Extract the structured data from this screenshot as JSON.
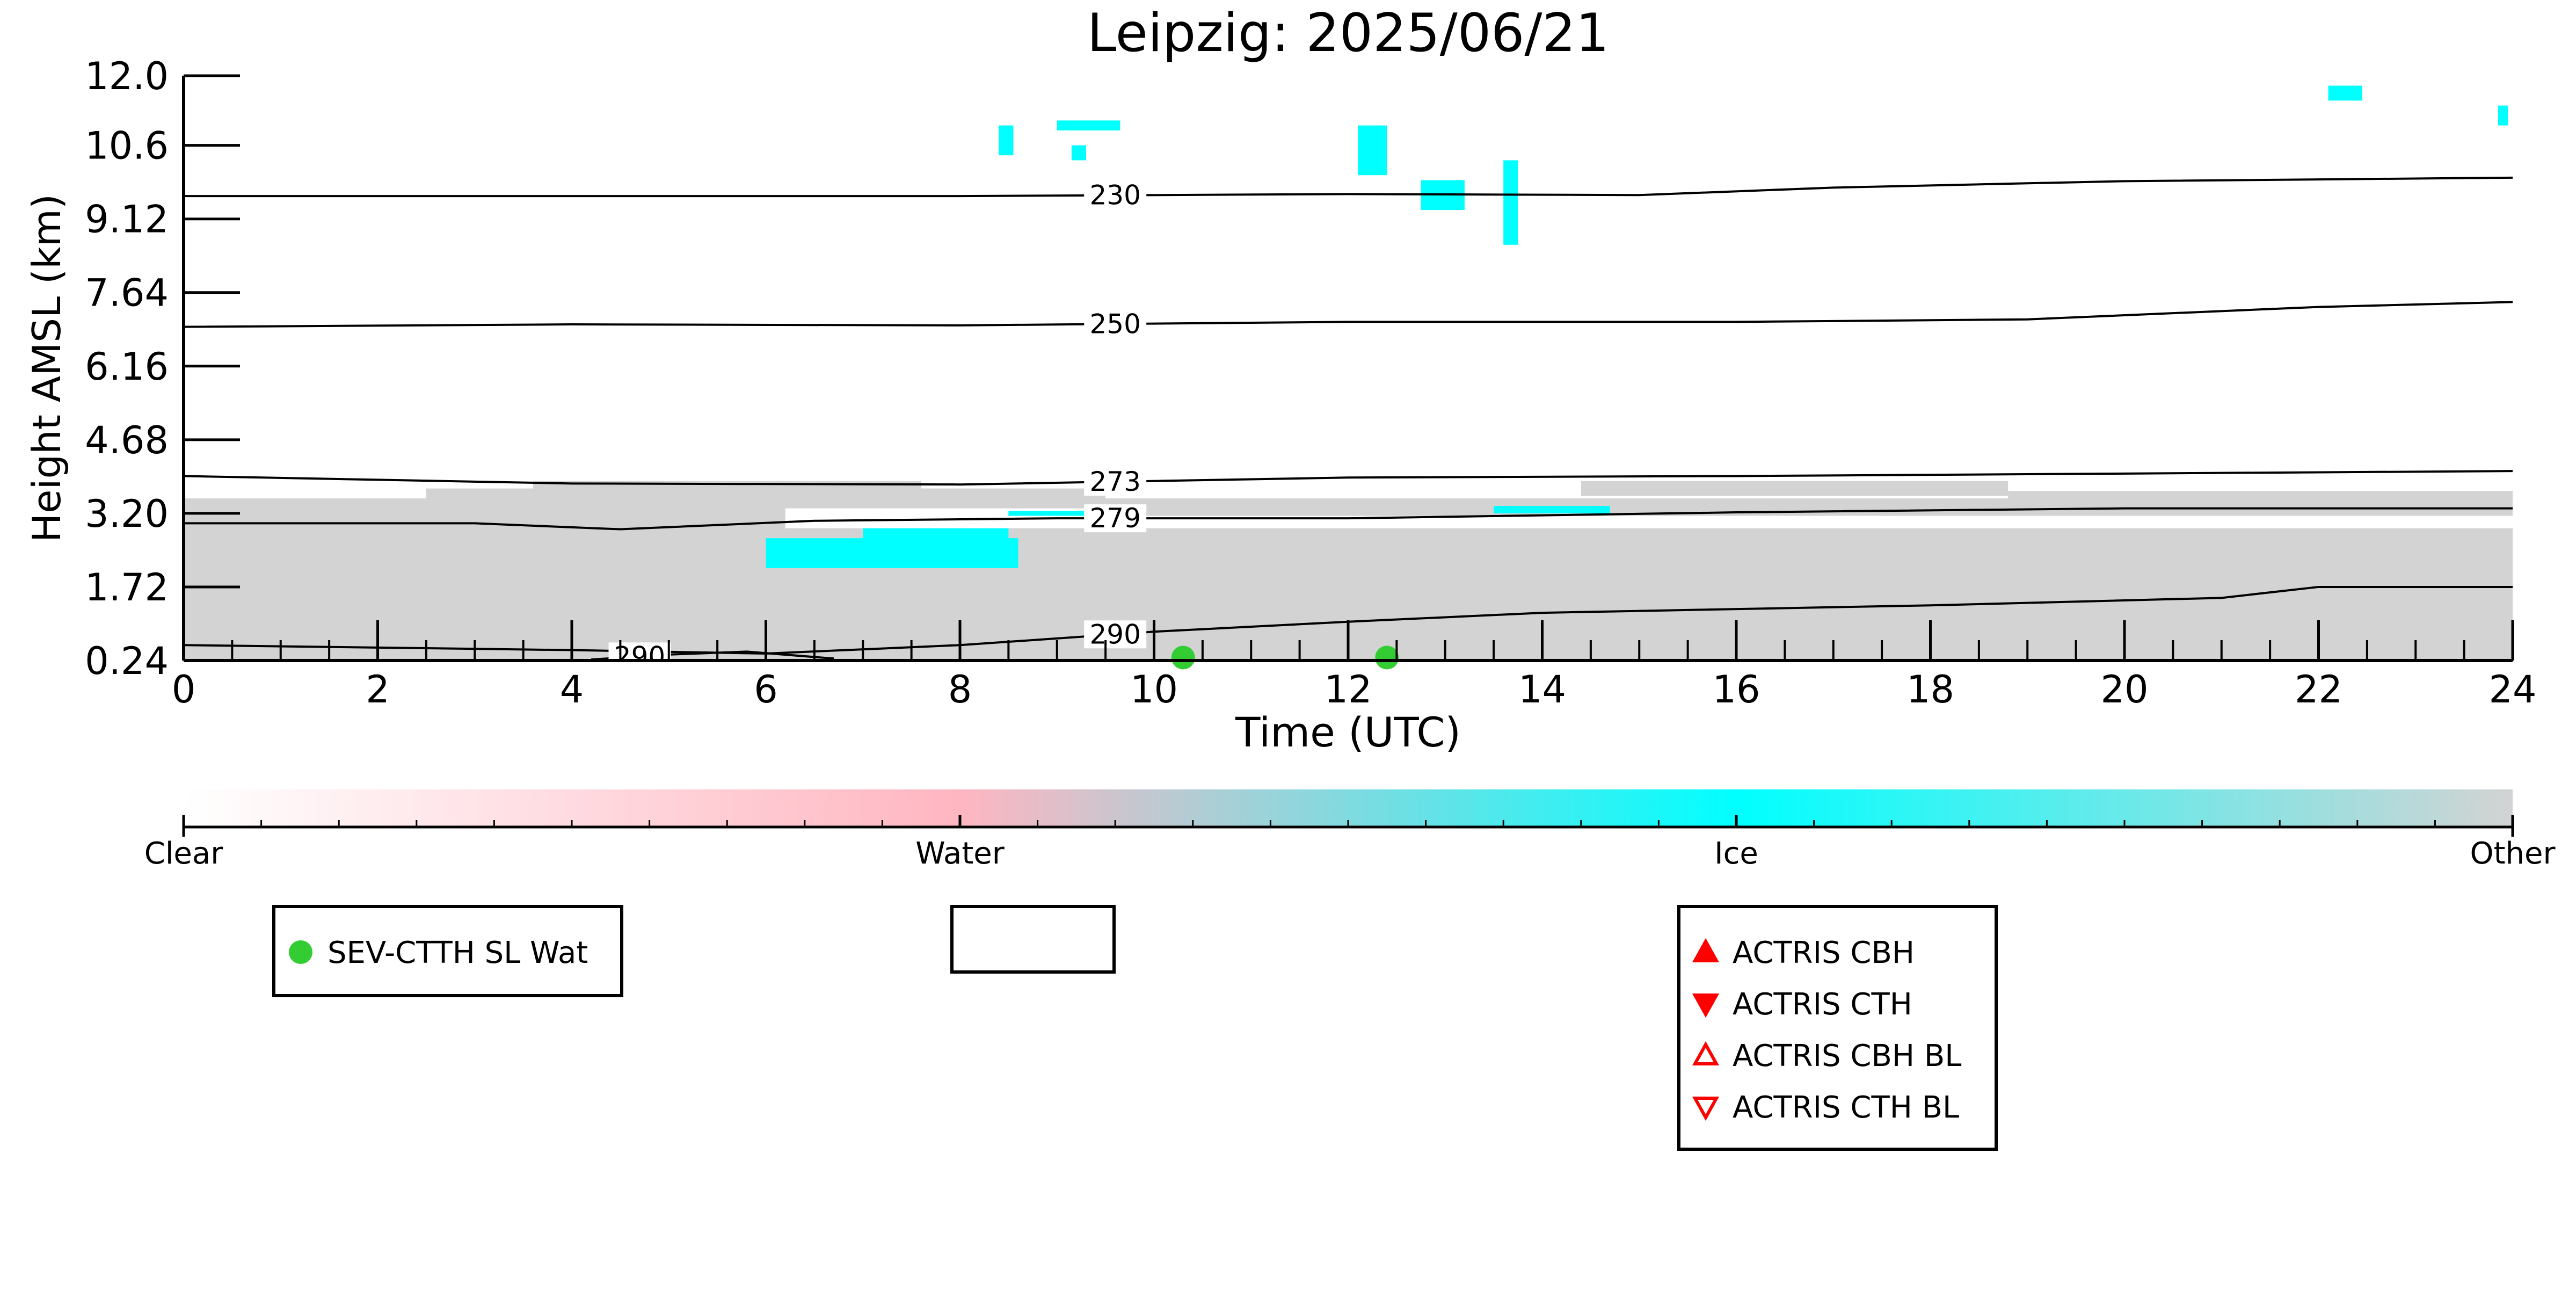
{
  "chart_data": {
    "type": "heatmap",
    "title": "Leipzig: 2025/06/21",
    "xlabel": "Time (UTC)",
    "ylabel": "Height AMSL (km)",
    "xlim": [
      0,
      24
    ],
    "ylim": [
      0.24,
      12.0
    ],
    "x_ticks": [
      "0",
      "2",
      "4",
      "6",
      "8",
      "10",
      "12",
      "14",
      "16",
      "18",
      "20",
      "22",
      "24"
    ],
    "y_ticks": [
      "0.24",
      "1.72",
      "3.20",
      "4.68",
      "6.16",
      "7.64",
      "9.12",
      "10.6",
      "12.0"
    ],
    "y_tick_values": [
      0.24,
      1.72,
      3.2,
      4.68,
      6.16,
      7.64,
      9.12,
      10.6,
      12.0
    ],
    "colors": {
      "clear": "#ffffff",
      "water": "#ffb6c1",
      "ice": "#00ffff",
      "other": "#d3d3d3",
      "sev_ctth": "#33cc33",
      "actris": "#ff0000"
    },
    "colorbar": {
      "labels": [
        "Clear",
        "Water",
        "Ice",
        "Other"
      ]
    },
    "classification_regions": [
      {
        "class": "other",
        "x": [
          0,
          24
        ],
        "y": [
          0.24,
          2.9
        ]
      },
      {
        "class": "other",
        "x": [
          0,
          6.2
        ],
        "y": [
          2.9,
          3.5
        ]
      },
      {
        "class": "other",
        "x": [
          2.5,
          9.5
        ],
        "y": [
          3.3,
          3.7
        ]
      },
      {
        "class": "other",
        "x": [
          3.6,
          7.6
        ],
        "y": [
          3.65,
          3.85
        ]
      },
      {
        "class": "other",
        "x": [
          9.5,
          24
        ],
        "y": [
          3.15,
          3.5
        ]
      },
      {
        "class": "other",
        "x": [
          14.4,
          18.8
        ],
        "y": [
          3.55,
          3.85
        ]
      },
      {
        "class": "other",
        "x": [
          18.8,
          24
        ],
        "y": [
          3.3,
          3.65
        ]
      },
      {
        "class": "ice",
        "x": [
          6.0,
          8.6
        ],
        "y": [
          2.1,
          2.7
        ]
      },
      {
        "class": "ice",
        "x": [
          7.0,
          8.5
        ],
        "y": [
          2.6,
          2.9
        ]
      },
      {
        "class": "ice",
        "x": [
          8.5,
          9.4
        ],
        "y": [
          3.15,
          3.25
        ]
      },
      {
        "class": "ice",
        "x": [
          13.5,
          14.7
        ],
        "y": [
          3.2,
          3.35
        ]
      },
      {
        "class": "ice",
        "x": [
          8.4,
          8.55
        ],
        "y": [
          10.4,
          11.0
        ]
      },
      {
        "class": "ice",
        "x": [
          9.0,
          9.65
        ],
        "y": [
          10.9,
          11.1
        ]
      },
      {
        "class": "ice",
        "x": [
          9.15,
          9.3
        ],
        "y": [
          10.3,
          10.6
        ]
      },
      {
        "class": "ice",
        "x": [
          12.1,
          12.4
        ],
        "y": [
          10.0,
          11.0
        ]
      },
      {
        "class": "ice",
        "x": [
          12.75,
          13.2
        ],
        "y": [
          9.3,
          9.9
        ]
      },
      {
        "class": "ice",
        "x": [
          13.6,
          13.75
        ],
        "y": [
          8.6,
          10.3
        ]
      },
      {
        "class": "ice",
        "x": [
          22.1,
          22.45
        ],
        "y": [
          11.5,
          11.8
        ]
      },
      {
        "class": "ice",
        "x": [
          23.85,
          23.95
        ],
        "y": [
          11.0,
          11.4
        ]
      }
    ],
    "isotherms": [
      {
        "label": "230",
        "label_x": 9.6,
        "points": [
          [
            0,
            9.58
          ],
          [
            4,
            9.58
          ],
          [
            8,
            9.58
          ],
          [
            12,
            9.62
          ],
          [
            15,
            9.6
          ],
          [
            17,
            9.75
          ],
          [
            20,
            9.88
          ],
          [
            24,
            9.95
          ]
        ]
      },
      {
        "label": "250",
        "label_x": 9.6,
        "points": [
          [
            0,
            6.95
          ],
          [
            4,
            7.0
          ],
          [
            8,
            6.98
          ],
          [
            12,
            7.05
          ],
          [
            16,
            7.05
          ],
          [
            19,
            7.1
          ],
          [
            22,
            7.35
          ],
          [
            24,
            7.45
          ]
        ]
      },
      {
        "label": "273",
        "label_x": 9.6,
        "points": [
          [
            0,
            3.95
          ],
          [
            4,
            3.8
          ],
          [
            8,
            3.78
          ],
          [
            12,
            3.92
          ],
          [
            16,
            3.95
          ],
          [
            20,
            4.0
          ],
          [
            24,
            4.05
          ]
        ]
      },
      {
        "label": "279",
        "label_x": 9.6,
        "points": [
          [
            0,
            3.0
          ],
          [
            3,
            3.0
          ],
          [
            4.5,
            2.88
          ],
          [
            6.5,
            3.05
          ],
          [
            9,
            3.1
          ],
          [
            12,
            3.1
          ],
          [
            16,
            3.22
          ],
          [
            20,
            3.3
          ],
          [
            24,
            3.3
          ]
        ]
      },
      {
        "label": "290",
        "label_x": 9.6,
        "points": [
          [
            0,
            0.55
          ],
          [
            4,
            0.45
          ],
          [
            6,
            0.38
          ],
          [
            8,
            0.55
          ],
          [
            10,
            0.82
          ],
          [
            12,
            1.02
          ],
          [
            14,
            1.2
          ],
          [
            18,
            1.35
          ],
          [
            21,
            1.5
          ],
          [
            22,
            1.72
          ],
          [
            24,
            1.72
          ]
        ]
      },
      {
        "label": "290",
        "label_x": 4.7,
        "points": [
          [
            4.2,
            0.26
          ],
          [
            5.0,
            0.36
          ],
          [
            5.8,
            0.42
          ],
          [
            6.7,
            0.28
          ]
        ]
      }
    ],
    "sev_ctth_points": [
      [
        10.3,
        0.3
      ],
      [
        12.4,
        0.3
      ]
    ],
    "legends": [
      {
        "entries": [
          "SEV-CTTH SL Wat"
        ]
      },
      {
        "entries": []
      },
      {
        "entries": [
          "ACTRIS CBH",
          "ACTRIS CTH",
          "ACTRIS CBH BL",
          "ACTRIS CTH BL"
        ]
      }
    ]
  }
}
